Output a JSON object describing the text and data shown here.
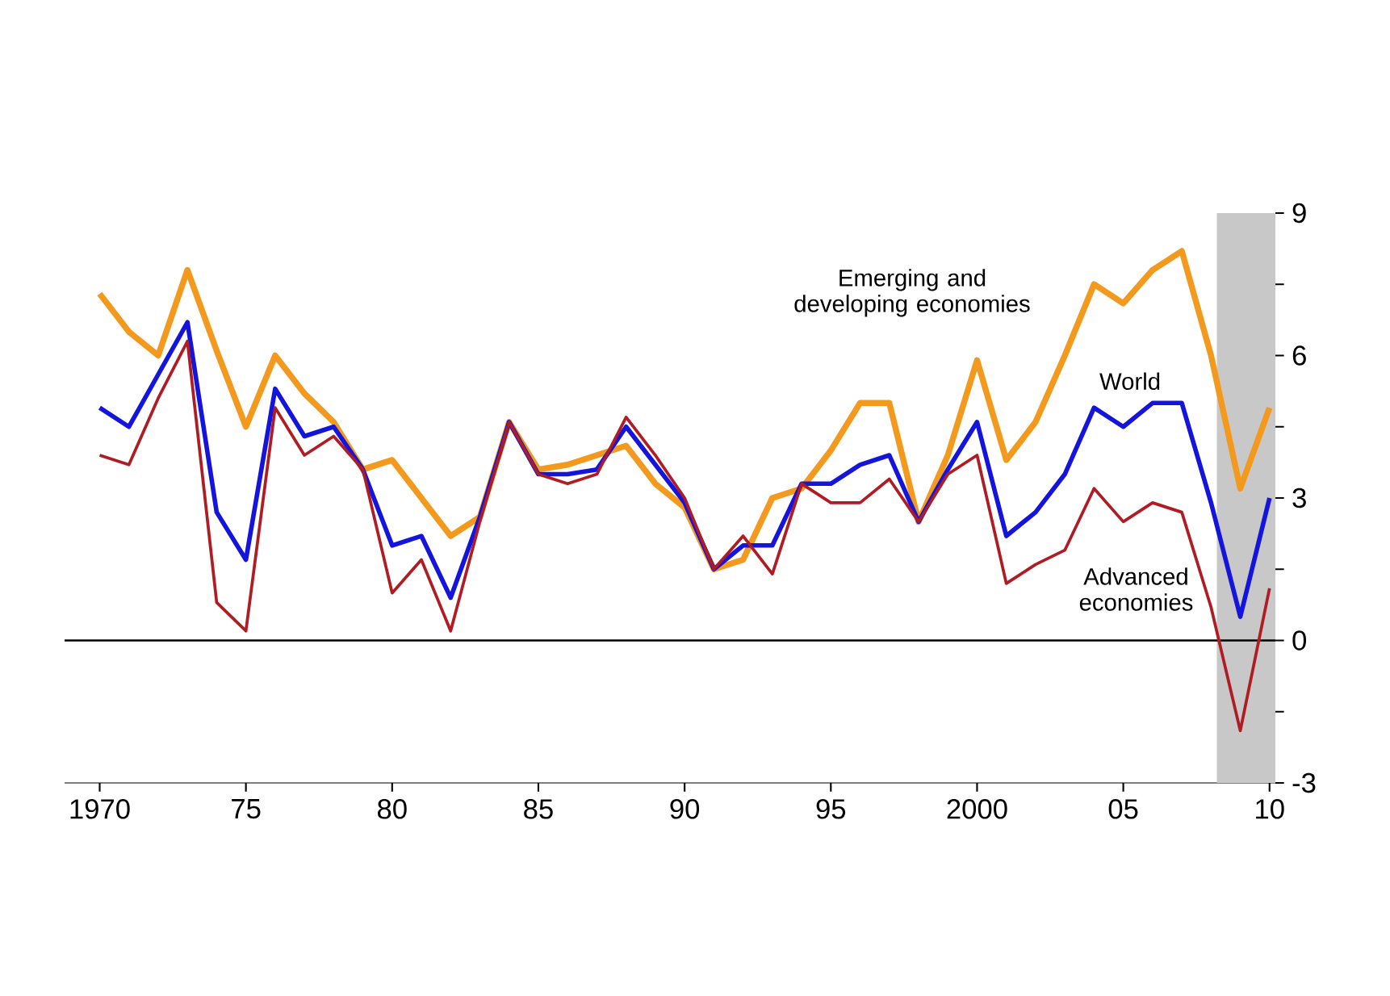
{
  "chart_data": {
    "type": "line",
    "x": [
      1970,
      1971,
      1972,
      1973,
      1974,
      1975,
      1976,
      1977,
      1978,
      1979,
      1980,
      1981,
      1982,
      1983,
      1984,
      1985,
      1986,
      1987,
      1988,
      1989,
      1990,
      1991,
      1992,
      1993,
      1994,
      1995,
      1996,
      1997,
      1998,
      1999,
      2000,
      2001,
      2002,
      2003,
      2004,
      2005,
      2006,
      2007,
      2008,
      2009,
      2010
    ],
    "series": [
      {
        "name": "Emerging and developing economies",
        "color": "#f39a1e",
        "values": [
          7.3,
          6.5,
          6.0,
          7.8,
          6.1,
          4.5,
          6.0,
          5.2,
          4.6,
          3.6,
          3.8,
          3.0,
          2.2,
          2.6,
          4.6,
          3.6,
          3.7,
          3.9,
          4.1,
          3.3,
          2.8,
          1.5,
          1.7,
          3.0,
          3.2,
          4.0,
          5.0,
          5.0,
          2.5,
          3.9,
          5.9,
          3.8,
          4.6,
          6.0,
          7.5,
          7.1,
          7.8,
          8.2,
          6.0,
          3.2,
          4.9
        ]
      },
      {
        "name": "World",
        "color": "#1414dc",
        "values": [
          4.9,
          4.5,
          5.6,
          6.7,
          2.7,
          1.7,
          5.3,
          4.3,
          4.5,
          3.6,
          2.0,
          2.2,
          0.9,
          2.6,
          4.6,
          3.5,
          3.5,
          3.6,
          4.5,
          3.7,
          2.9,
          1.5,
          2.0,
          2.0,
          3.3,
          3.3,
          3.7,
          3.9,
          2.5,
          3.6,
          4.6,
          2.2,
          2.7,
          3.5,
          4.9,
          4.5,
          5.0,
          5.0,
          2.9,
          0.5,
          3.0
        ]
      },
      {
        "name": "Advanced economies",
        "color": "#b01c24",
        "values": [
          3.9,
          3.7,
          5.1,
          6.3,
          0.8,
          0.2,
          4.9,
          3.9,
          4.3,
          3.6,
          1.0,
          1.7,
          0.2,
          2.5,
          4.6,
          3.5,
          3.3,
          3.5,
          4.7,
          3.9,
          3.0,
          1.5,
          2.2,
          1.4,
          3.3,
          2.9,
          2.9,
          3.4,
          2.5,
          3.5,
          3.9,
          1.2,
          1.6,
          1.9,
          3.2,
          2.5,
          2.9,
          2.7,
          0.7,
          -1.9,
          1.1
        ]
      }
    ],
    "xlim": [
      1968.8,
      2010.2
    ],
    "xticks": [
      {
        "value": 1970,
        "label": "1970"
      },
      {
        "value": 1975,
        "label": "75"
      },
      {
        "value": 1980,
        "label": "80"
      },
      {
        "value": 1985,
        "label": "85"
      },
      {
        "value": 1990,
        "label": "90"
      },
      {
        "value": 1995,
        "label": "95"
      },
      {
        "value": 2000,
        "label": "2000"
      },
      {
        "value": 2005,
        "label": "05"
      },
      {
        "value": 2010,
        "label": "10"
      }
    ],
    "ylim": [
      -3,
      9
    ],
    "yticks": [
      -3,
      {
        "value": -1.5,
        "label": null
      },
      0,
      {
        "value": 1.5,
        "label": null
      },
      3,
      {
        "value": 4.5,
        "label": null
      },
      6,
      {
        "value": 7.5,
        "label": null
      },
      9
    ],
    "ref_lines": [
      {
        "axis": "y",
        "value": 0,
        "color": "#000000"
      }
    ],
    "bands": [
      {
        "axis": "x",
        "from": 2008.2,
        "to": 2010.2,
        "color": "#c8c8c8"
      }
    ],
    "grid": false,
    "marker": "none",
    "line_style": "solid"
  }
}
